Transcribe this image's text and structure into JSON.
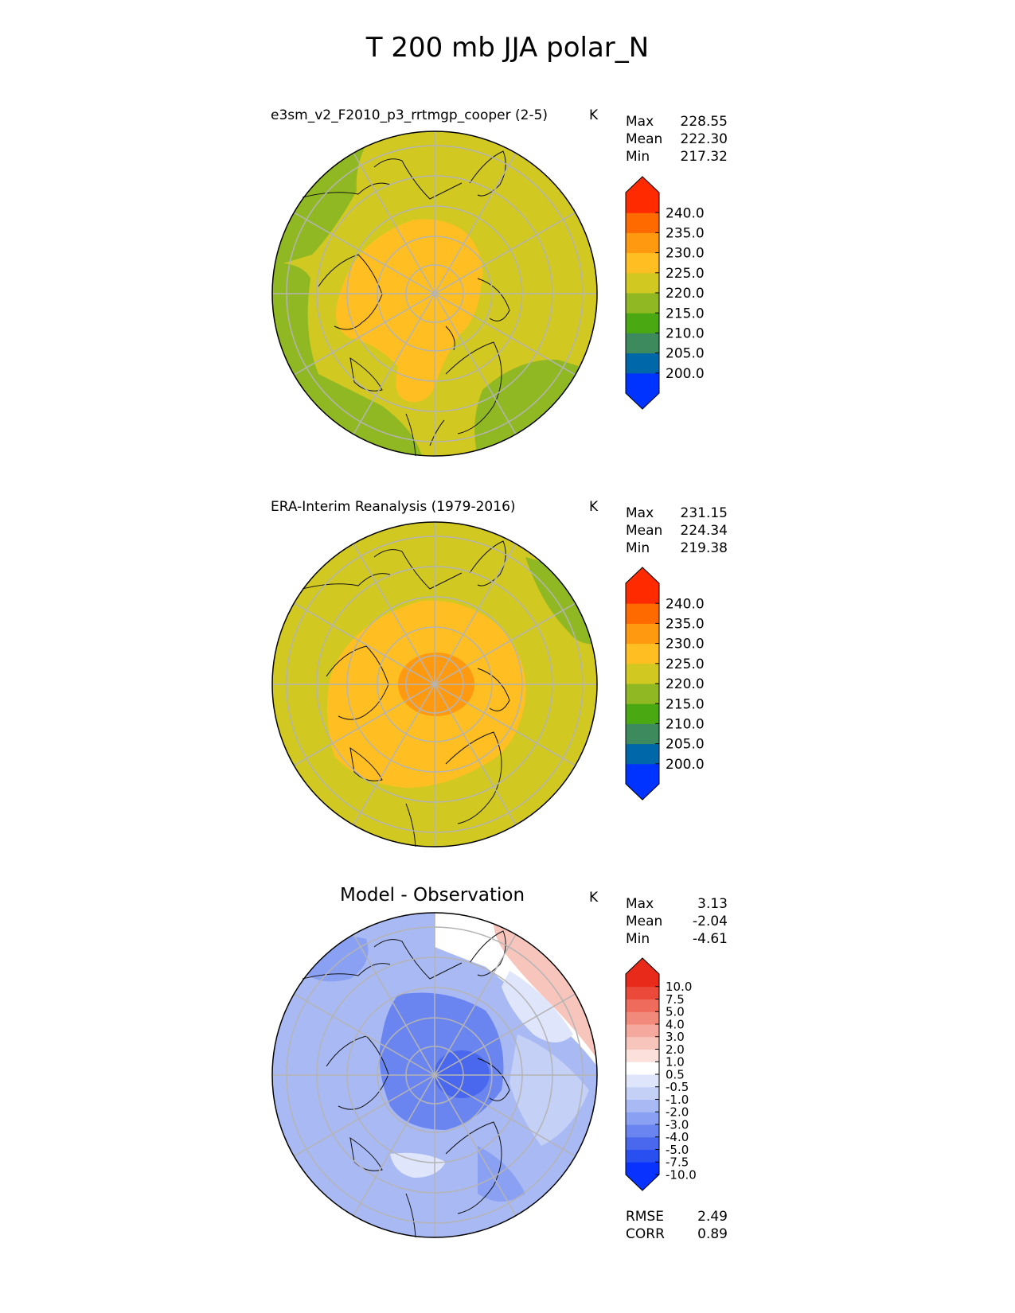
{
  "page_title": "T 200 mb JJA polar_N",
  "colors": {
    "abs_levels": [
      "#0033ff",
      "#0068a8",
      "#3d8a5e",
      "#4aa812",
      "#8fb822",
      "#d1c822",
      "#ffbf22",
      "#ff9a10",
      "#ff6a00",
      "#ff2a00"
    ],
    "diff_levels": [
      "#0a32ff",
      "#2a4ff0",
      "#4a68ee",
      "#6a85f0",
      "#8aa0f2",
      "#a9b9f4",
      "#c5d0f7",
      "#dfe5fb",
      "#ffffff",
      "#fbe0dc",
      "#f8c5bd",
      "#f5a89d",
      "#f28a7c",
      "#ef6b5c",
      "#eb4a3a",
      "#e82a1a"
    ],
    "grid": "#b4b4b4",
    "coast": "#111111"
  },
  "panels": [
    {
      "title": "e3sm_v2_F2010_p3_rrtmgp_cooper (2-5)",
      "units": "K",
      "stats": [
        {
          "label": "Max",
          "value": "228.55"
        },
        {
          "label": "Mean",
          "value": "222.30"
        },
        {
          "label": "Min",
          "value": "217.32"
        }
      ],
      "colorbar_ticks": [
        "240.0",
        "235.0",
        "230.0",
        "225.0",
        "220.0",
        "215.0",
        "210.0",
        "205.0",
        "200.0"
      ]
    },
    {
      "title": "ERA-Interim Reanalysis (1979-2016)",
      "units": "K",
      "stats": [
        {
          "label": "Max",
          "value": "231.15"
        },
        {
          "label": "Mean",
          "value": "224.34"
        },
        {
          "label": "Min",
          "value": "219.38"
        }
      ],
      "colorbar_ticks": [
        "240.0",
        "235.0",
        "230.0",
        "225.0",
        "220.0",
        "215.0",
        "210.0",
        "205.0",
        "200.0"
      ]
    },
    {
      "title": "Model - Observation",
      "units": "K",
      "stats": [
        {
          "label": "Max",
          "value": "3.13"
        },
        {
          "label": "Mean",
          "value": "-2.04"
        },
        {
          "label": "Min",
          "value": "-4.61"
        }
      ],
      "colorbar_ticks": [
        "10.0",
        "7.5",
        "5.0",
        "4.0",
        "3.0",
        "2.0",
        "1.0",
        "0.5",
        "-0.5",
        "-1.0",
        "-2.0",
        "-3.0",
        "-4.0",
        "-5.0",
        "-7.5",
        "-10.0"
      ],
      "extra_stats": [
        {
          "label": "RMSE",
          "value": "2.49"
        },
        {
          "label": "CORR",
          "value": "0.89"
        }
      ]
    }
  ],
  "chart_data": [
    {
      "type": "heatmap",
      "projection": "north polar stereographic",
      "title": "e3sm_v2_F2010_p3_rrtmgp_cooper (2-5)",
      "units": "K",
      "levels": [
        200,
        205,
        210,
        215,
        220,
        225,
        230,
        235,
        240
      ],
      "field_regions": [
        {
          "region": "outer ring (Pacific / N. Atlantic edges)",
          "value_range": [
            215,
            220
          ]
        },
        {
          "region": "mid latitudes",
          "value_range": [
            220,
            225
          ]
        },
        {
          "region": "polar cap",
          "value_range": [
            225,
            230
          ]
        }
      ],
      "max": 228.55,
      "mean": 222.3,
      "min": 217.32
    },
    {
      "type": "heatmap",
      "projection": "north polar stereographic",
      "title": "ERA-Interim Reanalysis (1979-2016)",
      "units": "K",
      "levels": [
        200,
        205,
        210,
        215,
        220,
        225,
        230,
        235,
        240
      ],
      "field_regions": [
        {
          "region": "NE edge patch",
          "value_range": [
            215,
            220
          ]
        },
        {
          "region": "mid latitudes",
          "value_range": [
            220,
            225
          ]
        },
        {
          "region": "polar cap",
          "value_range": [
            225,
            230
          ]
        },
        {
          "region": "pole center",
          "value_range": [
            230,
            235
          ]
        }
      ],
      "max": 231.15,
      "mean": 224.34,
      "min": 219.38
    },
    {
      "type": "heatmap",
      "projection": "north polar stereographic",
      "title": "Model - Observation",
      "units": "K",
      "levels": [
        -10,
        -7.5,
        -5,
        -4,
        -3,
        -2,
        -1,
        -0.5,
        0.5,
        1,
        2,
        3,
        4,
        5,
        7.5,
        10
      ],
      "field_regions": [
        {
          "region": "NE sector (positive)",
          "value_range": [
            1,
            3
          ]
        },
        {
          "region": "most of domain",
          "value_range": [
            -3,
            -1
          ]
        },
        {
          "region": "near pole",
          "value_range": [
            -5,
            -3
          ]
        }
      ],
      "max": 3.13,
      "mean": -2.04,
      "min": -4.61,
      "rmse": 2.49,
      "corr": 0.89
    }
  ]
}
